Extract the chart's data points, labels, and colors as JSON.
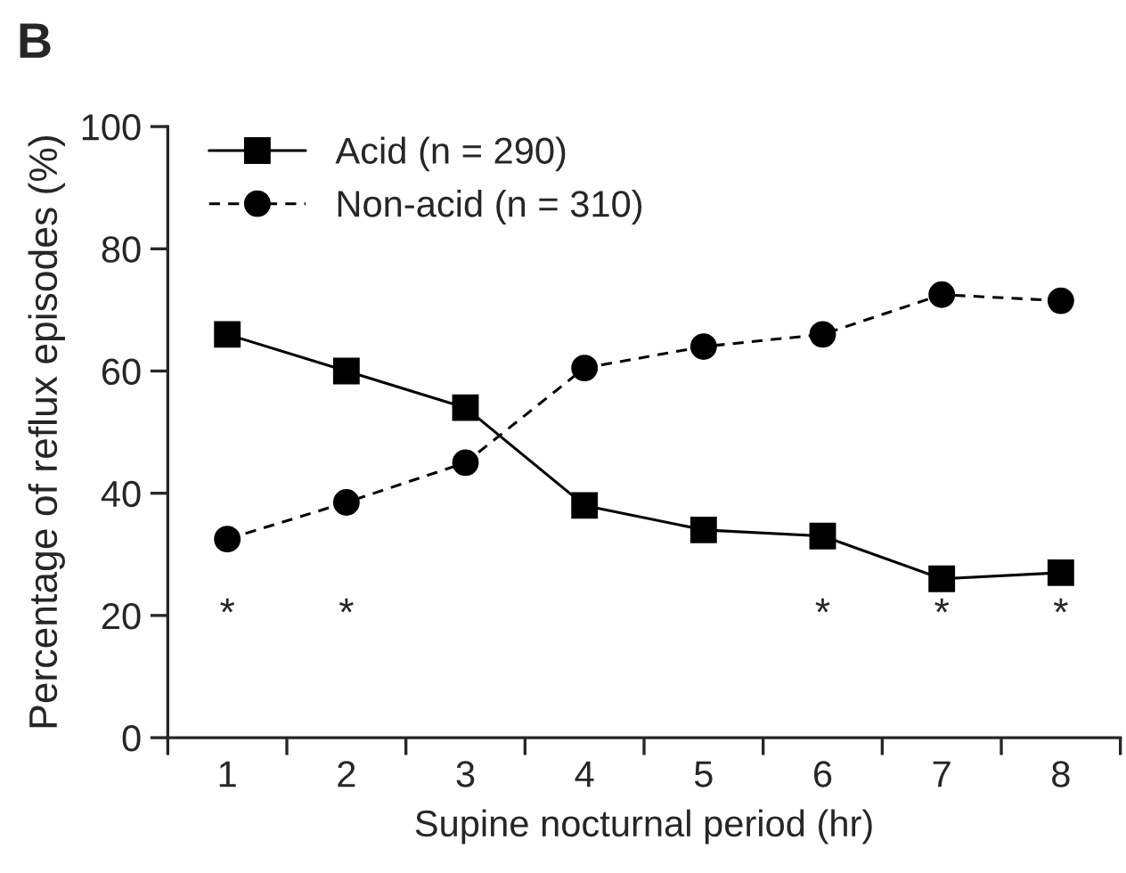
{
  "chart_data": {
    "type": "line",
    "title": "B",
    "xlabel": "Supine nocturnal period (hr)",
    "ylabel": "Percentage of reflux episodes (%)",
    "categories": [
      "1",
      "2",
      "3",
      "4",
      "5",
      "6",
      "7",
      "8"
    ],
    "series": [
      {
        "name": "Acid (n = 290)",
        "color": "#000000",
        "marker": "square",
        "line_style": "solid",
        "values": [
          66,
          60,
          54,
          38,
          34,
          33,
          26,
          27
        ],
        "value_labels": [
          null,
          null,
          null,
          null,
          null,
          "*",
          "*",
          "*"
        ]
      },
      {
        "name": "Non-acid (n = 310)",
        "color": "#000000",
        "marker": "circle",
        "line_style": "dashed",
        "values": [
          32.5,
          38.5,
          45,
          60.5,
          64,
          66,
          72.5,
          71.5
        ],
        "value_labels": [
          "*",
          "*",
          null,
          null,
          null,
          null,
          null,
          null
        ]
      }
    ],
    "ylim": [
      0,
      100
    ],
    "yticks": [
      0,
      20,
      40,
      60,
      80,
      100
    ],
    "grid": false,
    "legend": "top left"
  }
}
